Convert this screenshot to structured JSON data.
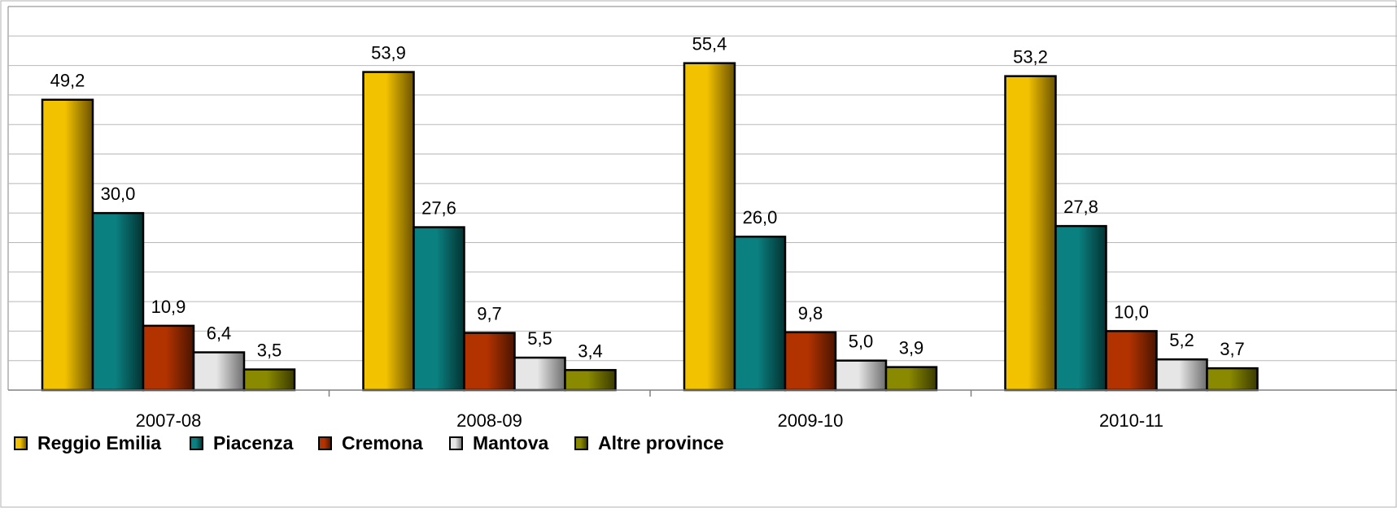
{
  "chart_data": {
    "type": "bar",
    "categories": [
      "2007-08",
      "2008-09",
      "2009-10",
      "2010-11"
    ],
    "series": [
      {
        "name": "Reggio Emilia",
        "values": [
          49.2,
          53.9,
          55.4,
          53.2
        ],
        "color": "#f2c200",
        "dark": "#6b5200"
      },
      {
        "name": "Piacenza",
        "values": [
          30.0,
          27.6,
          26.0,
          27.8
        ],
        "color": "#0b8080",
        "dark": "#033232"
      },
      {
        "name": "Cremona",
        "values": [
          10.9,
          9.7,
          9.8,
          10.0
        ],
        "color": "#b23300",
        "dark": "#4a1400"
      },
      {
        "name": "Mantova",
        "values": [
          6.4,
          5.5,
          5.0,
          5.2
        ],
        "color": "#e6e6e6",
        "dark": "#6e6e6e"
      },
      {
        "name": "Altre province",
        "values": [
          3.5,
          3.4,
          3.9,
          3.7
        ],
        "color": "#8a8a00",
        "dark": "#3a3a00"
      }
    ],
    "value_labels": {
      "Reggio Emilia": [
        "49,2",
        "53,9",
        "55,4",
        "53,2"
      ],
      "Piacenza": [
        "30,0",
        "27,6",
        "26,0",
        "27,8"
      ],
      "Cremona": [
        "10,9",
        "9,7",
        "9,8",
        "10,0"
      ],
      "Mantova": [
        "6,4",
        "5,5",
        "5,0",
        "5,2"
      ],
      "Altre province": [
        "3,5",
        "3,4",
        "3,9",
        "3,7"
      ]
    },
    "ylim": [
      0,
      65
    ],
    "grid": true,
    "legend_position": "bottom-left",
    "title": "",
    "xlabel": "",
    "ylabel": ""
  }
}
